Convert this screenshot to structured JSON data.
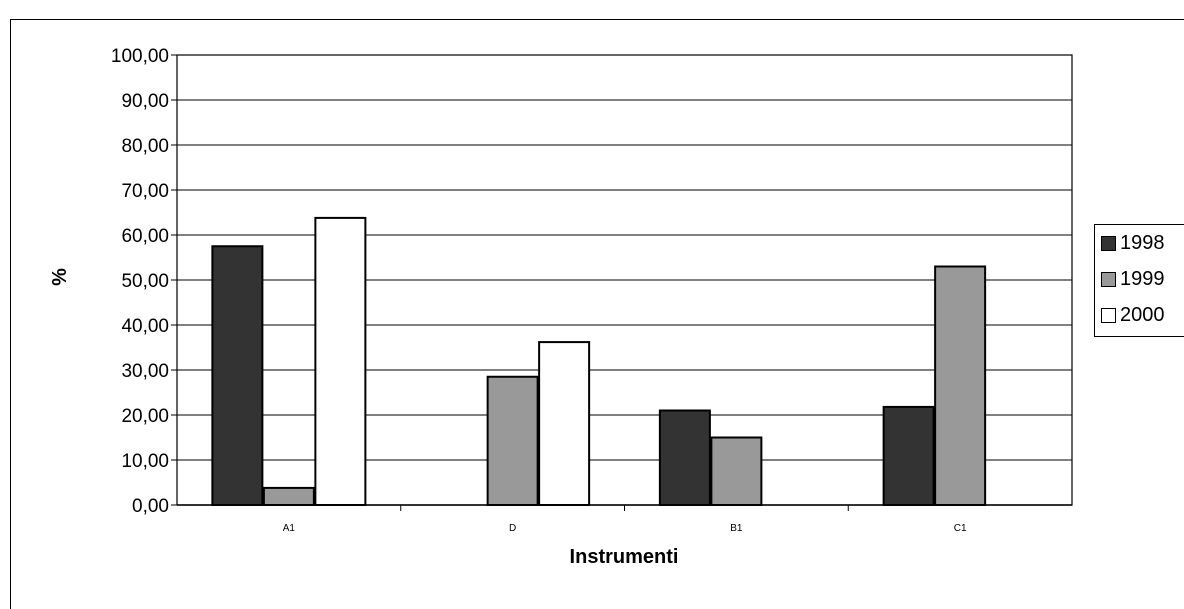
{
  "chart_data": {
    "type": "bar",
    "categories": [
      "A1",
      "D",
      "B1",
      "C1"
    ],
    "series": [
      {
        "name": "1998",
        "color": "#333333",
        "values": [
          57.5,
          0,
          21.0,
          21.8
        ]
      },
      {
        "name": "1999",
        "color": "#999999",
        "values": [
          3.8,
          28.5,
          15.0,
          53.0
        ]
      },
      {
        "name": "2000",
        "color": "#ffffff",
        "values": [
          63.8,
          36.2,
          0,
          0
        ]
      }
    ],
    "xlabel": "Instrumenti",
    "ylabel": "%",
    "ylim": [
      0,
      100
    ],
    "yticks": [
      "0,00",
      "10,00",
      "20,00",
      "30,00",
      "40,00",
      "50,00",
      "60,00",
      "70,00",
      "80,00",
      "90,00",
      "100,00"
    ],
    "grid": true,
    "plot_background": "#ffffff",
    "legend_position": "right"
  }
}
